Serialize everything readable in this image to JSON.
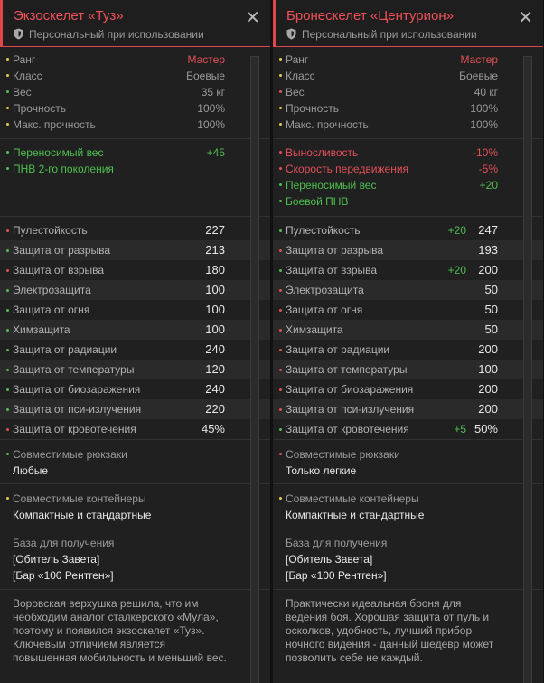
{
  "colors": {
    "accent": "#e0464b",
    "yellow": "#e6c84a",
    "green": "#4fbf4f",
    "red": "#e05058"
  },
  "panels": [
    {
      "title": "Экзоскелет «Туз»",
      "subtitle": "Персональный при использовании",
      "info": [
        {
          "label": "Ранг",
          "value": "Мастер",
          "dot": "yellow",
          "vcolor": "red"
        },
        {
          "label": "Класс",
          "value": "Боевые",
          "dot": "yellow",
          "vcolor": "muted"
        },
        {
          "label": "Вес",
          "value": "35 кг",
          "dot": "green",
          "vcolor": "muted"
        },
        {
          "label": "Прочность",
          "value": "100%",
          "dot": "yellow",
          "vcolor": "muted"
        },
        {
          "label": "Макс. прочность",
          "value": "100%",
          "dot": "yellow",
          "vcolor": "muted"
        }
      ],
      "modifiers": [
        {
          "label": "Переносимый вес",
          "value": "+45",
          "color": "green"
        },
        {
          "label": "ПНВ 2-го поколения",
          "value": "",
          "color": "green"
        }
      ],
      "stats": [
        {
          "label": "Пулестойкость",
          "value": "227",
          "bonus": "",
          "dot": "red"
        },
        {
          "label": "Защита от разрыва",
          "value": "213",
          "bonus": "",
          "dot": "green"
        },
        {
          "label": "Защита от взрыва",
          "value": "180",
          "bonus": "",
          "dot": "red"
        },
        {
          "label": "Электрозащита",
          "value": "100",
          "bonus": "",
          "dot": "green"
        },
        {
          "label": "Защита от огня",
          "value": "100",
          "bonus": "",
          "dot": "green"
        },
        {
          "label": "Химзащита",
          "value": "100",
          "bonus": "",
          "dot": "green"
        },
        {
          "label": "Защита от радиации",
          "value": "240",
          "bonus": "",
          "dot": "green"
        },
        {
          "label": "Защита от температуры",
          "value": "120",
          "bonus": "",
          "dot": "green"
        },
        {
          "label": "Защита от биозаражения",
          "value": "240",
          "bonus": "",
          "dot": "green"
        },
        {
          "label": "Защита от пси-излучения",
          "value": "220",
          "bonus": "",
          "dot": "green"
        },
        {
          "label": "Защита от кровотечения",
          "value": "45%",
          "bonus": "",
          "dot": "red"
        }
      ],
      "backpacks": {
        "label": "Совместимые рюкзаки",
        "value": "Любые",
        "dot": "green"
      },
      "containers": {
        "label": "Совместимые контейнеры",
        "value": "Компактные и стандартные",
        "dot": "yellow"
      },
      "base": {
        "label": "База для получения",
        "lines": [
          "[Обитель Завета]",
          "[Бар «100 Рентген»]"
        ]
      },
      "description": "Воровская верхушка решила, что им необходим аналог сталкерского «Мула», поэтому и появился экзоскелет «Туз». Ключевым отличием является повышенная мобильность и меньший вес."
    },
    {
      "title": "Бронескелет «Центурион»",
      "subtitle": "Персональный при использовании",
      "info": [
        {
          "label": "Ранг",
          "value": "Мастер",
          "dot": "yellow",
          "vcolor": "red"
        },
        {
          "label": "Класс",
          "value": "Боевые",
          "dot": "yellow",
          "vcolor": "muted"
        },
        {
          "label": "Вес",
          "value": "40 кг",
          "dot": "red",
          "vcolor": "muted"
        },
        {
          "label": "Прочность",
          "value": "100%",
          "dot": "yellow",
          "vcolor": "muted"
        },
        {
          "label": "Макс. прочность",
          "value": "100%",
          "dot": "yellow",
          "vcolor": "muted"
        }
      ],
      "modifiers": [
        {
          "label": "Выносливость",
          "value": "-10%",
          "color": "red"
        },
        {
          "label": "Скорость передвижения",
          "value": "-5%",
          "color": "red"
        },
        {
          "label": "Переносимый вес",
          "value": "+20",
          "color": "green"
        },
        {
          "label": "Боевой ПНВ",
          "value": "",
          "color": "green"
        }
      ],
      "stats": [
        {
          "label": "Пулестойкость",
          "value": "247",
          "bonus": "+20",
          "dot": "green"
        },
        {
          "label": "Защита от разрыва",
          "value": "193",
          "bonus": "",
          "dot": "red"
        },
        {
          "label": "Защита от взрыва",
          "value": "200",
          "bonus": "+20",
          "dot": "green"
        },
        {
          "label": "Электрозащита",
          "value": "50",
          "bonus": "",
          "dot": "red"
        },
        {
          "label": "Защита от огня",
          "value": "50",
          "bonus": "",
          "dot": "red"
        },
        {
          "label": "Химзащита",
          "value": "50",
          "bonus": "",
          "dot": "red"
        },
        {
          "label": "Защита от радиации",
          "value": "200",
          "bonus": "",
          "dot": "red"
        },
        {
          "label": "Защита от температуры",
          "value": "100",
          "bonus": "",
          "dot": "red"
        },
        {
          "label": "Защита от биозаражения",
          "value": "200",
          "bonus": "",
          "dot": "red"
        },
        {
          "label": "Защита от пси-излучения",
          "value": "200",
          "bonus": "",
          "dot": "red"
        },
        {
          "label": "Защита от кровотечения",
          "value": "50%",
          "bonus": "+5",
          "dot": "green"
        }
      ],
      "backpacks": {
        "label": "Совместимые рюкзаки",
        "value": "Только легкие",
        "dot": "red"
      },
      "containers": {
        "label": "Совместимые контейнеры",
        "value": "Компактные и стандартные",
        "dot": "yellow"
      },
      "base": {
        "label": "База для получения",
        "lines": [
          "[Обитель Завета]",
          "[Бар «100 Рентген»]"
        ]
      },
      "description": "Практически идеальная броня для ведения боя. Хорошая защита от пуль и осколков, удобность, лучший прибор ночного видения - данный шедевр может позволить себе не каждый."
    }
  ]
}
